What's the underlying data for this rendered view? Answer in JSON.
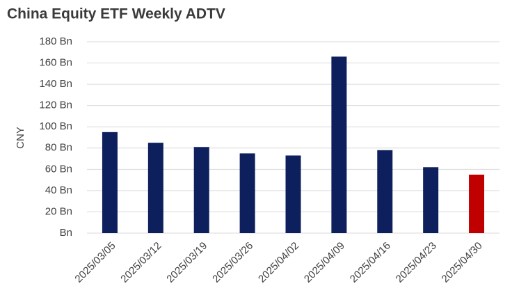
{
  "chart_data": {
    "type": "bar",
    "title": "China Equity ETF Weekly ADTV",
    "y_label": "CNY",
    "categories": [
      "2025/03/05",
      "2025/03/12",
      "2025/03/19",
      "2025/03/26",
      "2025/04/02",
      "2025/04/09",
      "2025/04/16",
      "2025/04/23",
      "2025/04/30"
    ],
    "values": [
      95,
      85,
      81,
      75,
      73,
      166,
      78,
      62,
      55
    ],
    "colors": [
      "#0d1f5c",
      "#0d1f5c",
      "#0d1f5c",
      "#0d1f5c",
      "#0d1f5c",
      "#0d1f5c",
      "#0d1f5c",
      "#0d1f5c",
      "#c00000"
    ],
    "ylim": [
      0,
      180
    ],
    "yticks": [
      {
        "value": 0,
        "label": "Bn"
      },
      {
        "value": 20,
        "label": "20 Bn"
      },
      {
        "value": 40,
        "label": "40 Bn"
      },
      {
        "value": 60,
        "label": "60 Bn"
      },
      {
        "value": 80,
        "label": "80 Bn"
      },
      {
        "value": 100,
        "label": "100 Bn"
      },
      {
        "value": 120,
        "label": "120 Bn"
      },
      {
        "value": 140,
        "label": "140 Bn"
      },
      {
        "value": 160,
        "label": "160 Bn"
      },
      {
        "value": 180,
        "label": "180 Bn"
      }
    ],
    "grid": true
  }
}
